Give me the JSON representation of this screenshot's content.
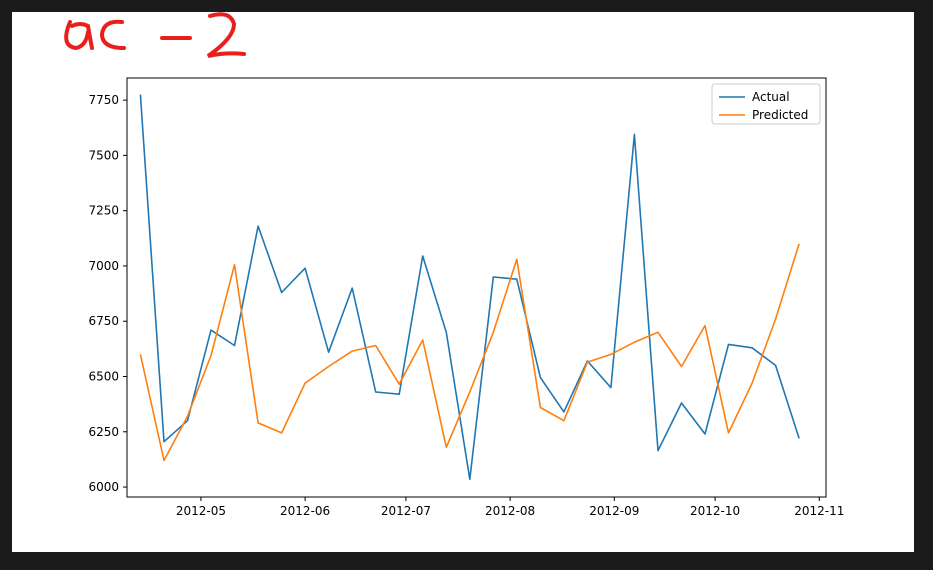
{
  "annotation": {
    "handwritten_text": "ac -2",
    "color": "#e8201c"
  },
  "chart_data": {
    "type": "line",
    "title": "",
    "xlabel": "",
    "ylabel": "",
    "xlim": [
      "2012-04-09",
      "2012-11-03"
    ],
    "ylim": [
      5955,
      7850
    ],
    "x_ticks": [
      {
        "date": "2012-05-01",
        "label": "2012-05"
      },
      {
        "date": "2012-06-01",
        "label": "2012-06"
      },
      {
        "date": "2012-07-01",
        "label": "2012-07"
      },
      {
        "date": "2012-08-01",
        "label": "2012-08"
      },
      {
        "date": "2012-09-01",
        "label": "2012-09"
      },
      {
        "date": "2012-10-01",
        "label": "2012-10"
      },
      {
        "date": "2012-11-01",
        "label": "2012-11"
      }
    ],
    "y_ticks": [
      6000,
      6250,
      6500,
      6750,
      7000,
      7250,
      7500,
      7750
    ],
    "grid": false,
    "legend_position": "top-right",
    "x": [
      "2012-04-13",
      "2012-04-20",
      "2012-04-27",
      "2012-05-04",
      "2012-05-11",
      "2012-05-18",
      "2012-05-25",
      "2012-06-01",
      "2012-06-08",
      "2012-06-15",
      "2012-06-22",
      "2012-06-29",
      "2012-07-06",
      "2012-07-13",
      "2012-07-20",
      "2012-07-27",
      "2012-08-03",
      "2012-08-10",
      "2012-08-17",
      "2012-08-24",
      "2012-08-31",
      "2012-09-07",
      "2012-09-14",
      "2012-09-21",
      "2012-09-28",
      "2012-10-05",
      "2012-10-12",
      "2012-10-19",
      "2012-10-26"
    ],
    "series": [
      {
        "name": "Actual",
        "color": "#1f77b4",
        "values": [
          7775,
          6205,
          6300,
          6710,
          6640,
          7180,
          6880,
          6990,
          6610,
          6900,
          6430,
          6420,
          7045,
          6700,
          6035,
          6950,
          6940,
          6495,
          6340,
          6570,
          6450,
          7595,
          6165,
          6380,
          6240,
          6645,
          6630,
          6550,
          6220
        ]
      },
      {
        "name": "Predicted",
        "color": "#ff7f0e",
        "values": [
          6600,
          6120,
          6320,
          6595,
          7005,
          6290,
          6245,
          6470,
          6545,
          6615,
          6640,
          6465,
          6665,
          6180,
          6430,
          6700,
          7030,
          6360,
          6300,
          6565,
          6600,
          6655,
          6700,
          6545,
          6730,
          6245,
          6470,
          6760,
          7100
        ]
      }
    ]
  }
}
